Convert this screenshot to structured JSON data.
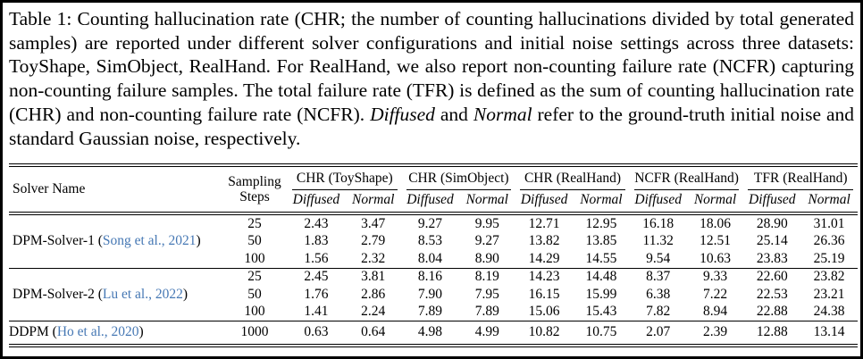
{
  "caption": {
    "segments": [
      {
        "text": "Table 1: Counting hallucination rate (CHR; the number of counting hallucinations divided by total generated samples) are reported under different solver configurations and initial noise settings across three datasets: ToyShape, SimObject, RealHand. For RealHand, we also report non-counting failure rate (NCFR) capturing non-counting failure samples. The total failure rate (TFR) is defined as the sum of counting hallucination rate (CHR) and non-counting failure rate (NCFR). ",
        "style": "normal"
      },
      {
        "text": "Diffused",
        "style": "italic"
      },
      {
        "text": " and ",
        "style": "normal"
      },
      {
        "text": "Normal",
        "style": "italic"
      },
      {
        "text": " refer to the ground-truth initial noise and standard Gaussian noise, respectively.",
        "style": "normal"
      }
    ]
  },
  "table": {
    "colors": {
      "citation_blue": "#4678b4",
      "text": "#000000",
      "rule": "#000000"
    },
    "header": {
      "solver_name": "Solver Name",
      "sampling_steps_line1": "Sampling",
      "sampling_steps_line2": "Steps",
      "groups": [
        "CHR (ToyShape)",
        "CHR (SimObject)",
        "CHR (RealHand)",
        "NCFR (RealHand)",
        "TFR (RealHand)"
      ],
      "subheaders": [
        "Diffused",
        "Normal"
      ]
    },
    "groups": [
      {
        "solver": "DPM-Solver-1",
        "citation": "Song et al., 2021",
        "rows": [
          {
            "steps": "25",
            "values": [
              "2.43",
              "3.47",
              "9.27",
              "9.95",
              "12.71",
              "12.95",
              "16.18",
              "18.06",
              "28.90",
              "31.01"
            ]
          },
          {
            "steps": "50",
            "values": [
              "1.83",
              "2.79",
              "8.53",
              "9.27",
              "13.82",
              "13.85",
              "11.32",
              "12.51",
              "25.14",
              "26.36"
            ]
          },
          {
            "steps": "100",
            "values": [
              "1.56",
              "2.32",
              "8.04",
              "8.90",
              "14.29",
              "14.55",
              "9.54",
              "10.63",
              "23.83",
              "25.19"
            ]
          }
        ]
      },
      {
        "solver": "DPM-Solver-2",
        "citation": "Lu et al., 2022",
        "rows": [
          {
            "steps": "25",
            "values": [
              "2.45",
              "3.81",
              "8.16",
              "8.19",
              "14.23",
              "14.48",
              "8.37",
              "9.33",
              "22.60",
              "23.82"
            ]
          },
          {
            "steps": "50",
            "values": [
              "1.76",
              "2.86",
              "7.90",
              "7.95",
              "16.15",
              "15.99",
              "6.38",
              "7.22",
              "22.53",
              "23.21"
            ]
          },
          {
            "steps": "100",
            "values": [
              "1.41",
              "2.24",
              "7.89",
              "7.89",
              "15.06",
              "15.43",
              "7.82",
              "8.94",
              "22.88",
              "24.38"
            ]
          }
        ]
      },
      {
        "solver": "DDPM",
        "citation": "Ho et al., 2020",
        "rows": [
          {
            "steps": "1000",
            "values": [
              "0.63",
              "0.64",
              "4.98",
              "4.99",
              "10.82",
              "10.75",
              "2.07",
              "2.39",
              "12.88",
              "13.14"
            ]
          }
        ]
      }
    ]
  }
}
